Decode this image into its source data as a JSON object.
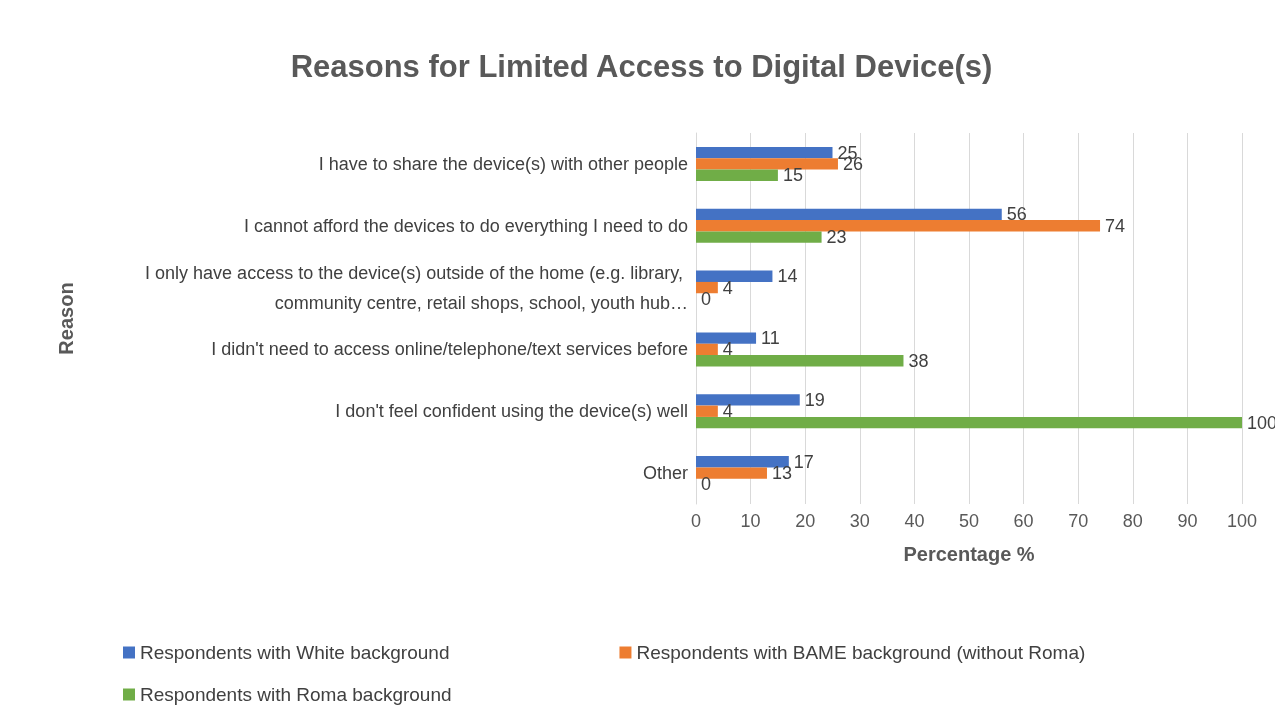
{
  "chart_data": {
    "type": "bar",
    "orientation": "horizontal",
    "title": "Reasons for Limited Access to Digital Device(s)",
    "xlabel": "Percentage %",
    "ylabel": "Reason",
    "categories": [
      "I have to share the device(s) with other people",
      "I cannot afford the devices to do everything I need to do",
      "I only have access to the device(s) outside of the home (e.g. library, community centre, retail shops, school, youth hub…",
      "I didn't need to access online/telephone/text services before",
      "I don't feel confident using the device(s) well",
      "Other"
    ],
    "series": [
      {
        "name": "Respondents with White background",
        "color": "#4472c4",
        "values": [
          25,
          56,
          14,
          11,
          19,
          17
        ]
      },
      {
        "name": "Respondents with BAME background (without Roma)",
        "color": "#ed7d31",
        "values": [
          26,
          74,
          4,
          4,
          4,
          13
        ]
      },
      {
        "name": "Respondents with Roma background",
        "color": "#70ad47",
        "values": [
          15,
          23,
          0,
          38,
          100,
          0
        ]
      }
    ],
    "xlim": [
      0,
      100
    ],
    "xticks": [
      0,
      10,
      20,
      30,
      40,
      50,
      60,
      70,
      80,
      90,
      100
    ],
    "grid": "x",
    "legend": "bottom",
    "data_labels": true
  }
}
